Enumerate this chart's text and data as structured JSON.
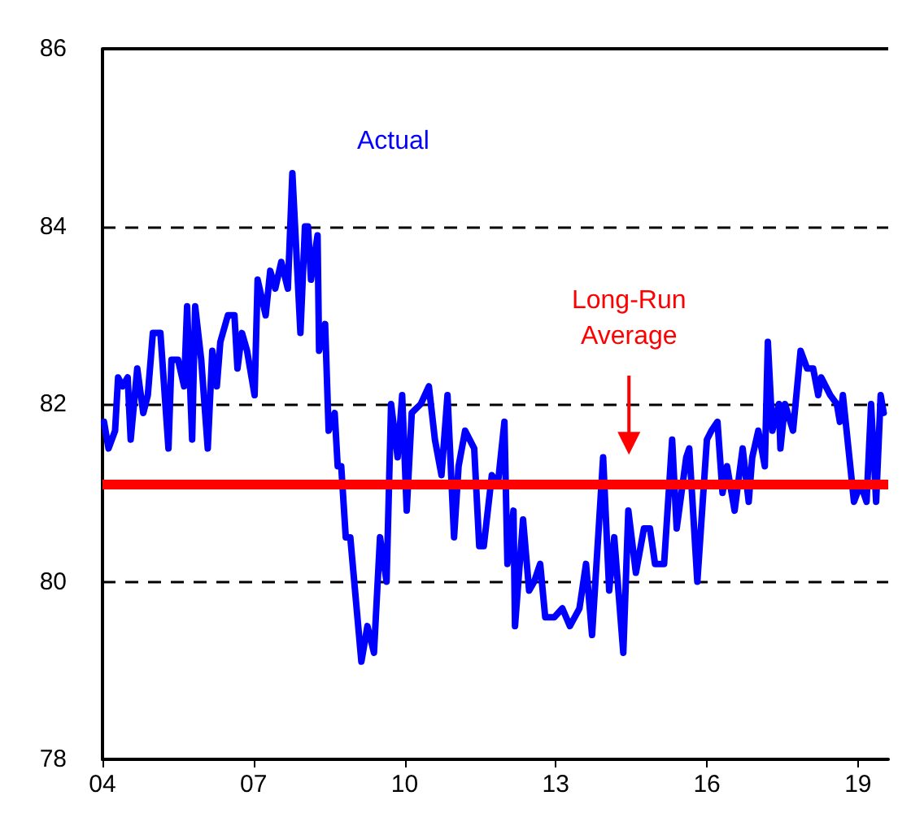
{
  "chart_data": {
    "type": "line",
    "x": [
      2004.03,
      2004.12,
      2004.25,
      2004.31,
      2004.4,
      2004.5,
      2004.56,
      2004.69,
      2004.81,
      2004.9,
      2005.0,
      2005.15,
      2005.31,
      2005.37,
      2005.5,
      2005.62,
      2005.68,
      2005.78,
      2005.84,
      2005.96,
      2006.09,
      2006.18,
      2006.27,
      2006.34,
      2006.49,
      2006.62,
      2006.68,
      2006.77,
      2006.87,
      2007.02,
      2007.08,
      2007.24,
      2007.33,
      2007.43,
      2007.55,
      2007.68,
      2007.77,
      2007.93,
      2008.02,
      2008.08,
      2008.14,
      2008.27,
      2008.3,
      2008.42,
      2008.49,
      2008.61,
      2008.67,
      2008.74,
      2008.83,
      2008.92,
      2009.14,
      2009.26,
      2009.39,
      2009.51,
      2009.64,
      2009.73,
      2009.86,
      2009.95,
      2010.04,
      2010.14,
      2010.32,
      2010.48,
      2010.6,
      2010.73,
      2010.85,
      2010.98,
      2011.07,
      2011.2,
      2011.38,
      2011.48,
      2011.57,
      2011.73,
      2011.85,
      2011.98,
      2012.04,
      2012.16,
      2012.19,
      2012.35,
      2012.47,
      2012.57,
      2012.69,
      2012.79,
      2012.97,
      2013.13,
      2013.28,
      2013.47,
      2013.6,
      2013.72,
      2013.94,
      2014.06,
      2014.16,
      2014.34,
      2014.44,
      2014.59,
      2014.75,
      2014.87,
      2014.97,
      2015.15,
      2015.31,
      2015.4,
      2015.59,
      2015.65,
      2015.81,
      2016.0,
      2016.09,
      2016.21,
      2016.31,
      2016.4,
      2016.55,
      2016.71,
      2016.83,
      2016.9,
      2017.02,
      2017.15,
      2017.21,
      2017.3,
      2017.43,
      2017.46,
      2017.55,
      2017.71,
      2017.86,
      2017.99,
      2018.11,
      2018.21,
      2018.27,
      2018.45,
      2018.58,
      2018.64,
      2018.7,
      2018.92,
      2019.05,
      2019.17,
      2019.26,
      2019.36,
      2019.45,
      2019.51
    ],
    "series": [
      {
        "name": "Actual",
        "color": "#0000ff",
        "values": [
          81.8,
          81.5,
          81.7,
          82.3,
          82.2,
          82.3,
          81.6,
          82.4,
          81.9,
          82.1,
          82.8,
          82.8,
          81.5,
          82.5,
          82.5,
          82.2,
          83.1,
          81.6,
          83.1,
          82.5,
          81.5,
          82.6,
          82.2,
          82.7,
          83.0,
          83.0,
          82.4,
          82.8,
          82.6,
          82.1,
          83.4,
          83.0,
          83.5,
          83.3,
          83.6,
          83.3,
          84.6,
          82.8,
          84.0,
          84.0,
          83.4,
          83.9,
          82.6,
          82.9,
          81.7,
          81.9,
          81.3,
          81.3,
          80.5,
          80.5,
          79.1,
          79.5,
          79.2,
          80.5,
          80.0,
          82.0,
          81.4,
          82.1,
          80.8,
          81.9,
          82.0,
          82.2,
          81.6,
          81.2,
          82.1,
          80.5,
          81.3,
          81.7,
          81.5,
          80.4,
          80.4,
          81.2,
          81.1,
          81.8,
          80.2,
          80.8,
          79.5,
          80.7,
          79.9,
          80.0,
          80.2,
          79.6,
          79.6,
          79.7,
          79.5,
          79.7,
          80.2,
          79.4,
          81.4,
          79.9,
          80.5,
          79.2,
          80.8,
          80.1,
          80.6,
          80.6,
          80.2,
          80.2,
          81.6,
          80.6,
          81.4,
          81.5,
          80.0,
          81.6,
          81.7,
          81.8,
          81.0,
          81.3,
          80.8,
          81.5,
          80.9,
          81.4,
          81.7,
          81.3,
          82.7,
          81.7,
          82.0,
          81.5,
          82.0,
          81.7,
          82.6,
          82.4,
          82.4,
          82.1,
          82.3,
          82.1,
          82.0,
          81.8,
          82.1,
          80.9,
          81.1,
          80.9,
          82.0,
          80.9,
          82.1,
          81.9
        ]
      }
    ],
    "xlim": [
      2004,
      2019.6
    ],
    "xticks": [
      {
        "value": 2004,
        "label": "04"
      },
      {
        "value": 2007,
        "label": "07"
      },
      {
        "value": 2010,
        "label": "10"
      },
      {
        "value": 2013,
        "label": "13"
      },
      {
        "value": 2016,
        "label": "16"
      },
      {
        "value": 2019,
        "label": "19"
      }
    ],
    "ylim": [
      78,
      86
    ],
    "yticks": [
      78,
      80,
      82,
      84,
      86
    ],
    "grid": "y",
    "legend": false,
    "marker": "none",
    "line_style": "solid",
    "ref_lines": [
      {
        "axis": "y",
        "value": 81.1,
        "label": "Long-Run\nAverage",
        "color": "#ff0000",
        "line_style": "solid"
      }
    ]
  }
}
